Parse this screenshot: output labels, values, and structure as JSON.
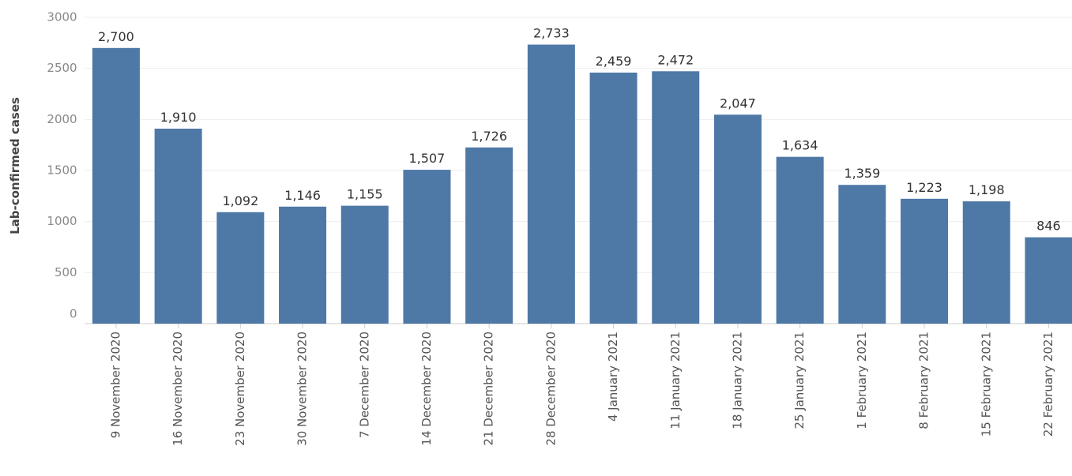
{
  "chart_data": {
    "type": "bar",
    "y_label": "Lab-confirmed cases",
    "categories": [
      "9 November 2020",
      "16 November 2020",
      "23 November 2020",
      "30 November 2020",
      "7 December 2020",
      "14 December 2020",
      "21 December 2020",
      "28 December 2020",
      "4 January 2021",
      "11 January 2021",
      "18 January 2021",
      "25 January 2021",
      "1 February 2021",
      "8 February 2021",
      "15 February 2021",
      "22 February 2021"
    ],
    "values": [
      2700,
      1910,
      1092,
      1146,
      1155,
      1507,
      1726,
      2733,
      2459,
      2472,
      2047,
      1634,
      1359,
      1223,
      1198,
      846
    ],
    "value_labels": [
      "2,700",
      "1,910",
      "1,092",
      "1,146",
      "1,155",
      "1,507",
      "1,726",
      "2,733",
      "2,459",
      "2,472",
      "2,047",
      "1,634",
      "1,359",
      "1,223",
      "1,198",
      "846"
    ],
    "color": "#4e78a6",
    "ylim": [
      0,
      3000
    ],
    "yticks": [
      0,
      500,
      1000,
      1500,
      2000,
      2500,
      3000
    ],
    "grid": true
  }
}
